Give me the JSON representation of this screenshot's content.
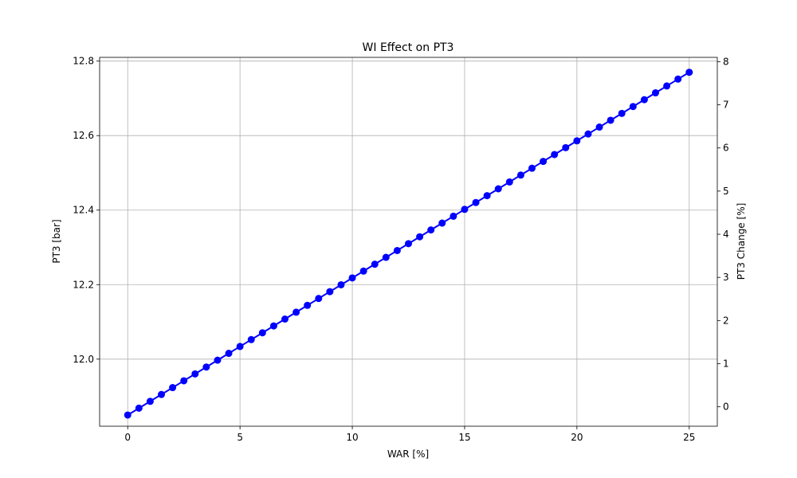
{
  "chart_data": {
    "type": "line",
    "title": "WI Effect on PT3",
    "xlabel": "WAR [%]",
    "ylabel": "PT3 [bar]",
    "y2label": "PT3 Change [%]",
    "xlim": [
      -1.25,
      26.25
    ],
    "ylim": [
      11.82,
      12.81
    ],
    "y2lim": [
      -0.45,
      8.1
    ],
    "x_ticks": [
      0,
      5,
      10,
      15,
      20,
      25
    ],
    "y_ticks": [
      12.0,
      12.2,
      12.4,
      12.6,
      12.8
    ],
    "y2_ticks": [
      0,
      1,
      2,
      3,
      4,
      5,
      6,
      7,
      8
    ],
    "grid": true,
    "series": [
      {
        "color": "#0000ff",
        "marker": "circle",
        "x": [
          0,
          0.5,
          1,
          1.5,
          2,
          2.5,
          3,
          3.5,
          4,
          4.5,
          5,
          5.5,
          6,
          6.5,
          7,
          7.5,
          8,
          8.5,
          9,
          9.5,
          10,
          10.5,
          11,
          11.5,
          12,
          12.5,
          13,
          13.5,
          14,
          14.5,
          15,
          15.5,
          16,
          16.5,
          17,
          17.5,
          18,
          18.5,
          19,
          19.5,
          20,
          20.5,
          21,
          21.5,
          22,
          22.5,
          23,
          23.5,
          24,
          24.5,
          25
        ],
        "y": [
          11.85,
          11.8684,
          11.8868,
          11.9052,
          11.9236,
          11.942,
          11.9604,
          11.9788,
          11.9972,
          12.0156,
          12.034,
          12.0524,
          12.0708,
          12.0892,
          12.1076,
          12.126,
          12.1444,
          12.1628,
          12.1812,
          12.1996,
          12.218,
          12.2364,
          12.2548,
          12.2732,
          12.2916,
          12.31,
          12.3284,
          12.3468,
          12.3652,
          12.3836,
          12.402,
          12.4204,
          12.4388,
          12.4572,
          12.4756,
          12.494,
          12.5124,
          12.5308,
          12.5492,
          12.5676,
          12.586,
          12.6044,
          12.6228,
          12.6412,
          12.6596,
          12.678,
          12.6964,
          12.7148,
          12.7332,
          12.7516,
          12.77
        ]
      }
    ]
  }
}
